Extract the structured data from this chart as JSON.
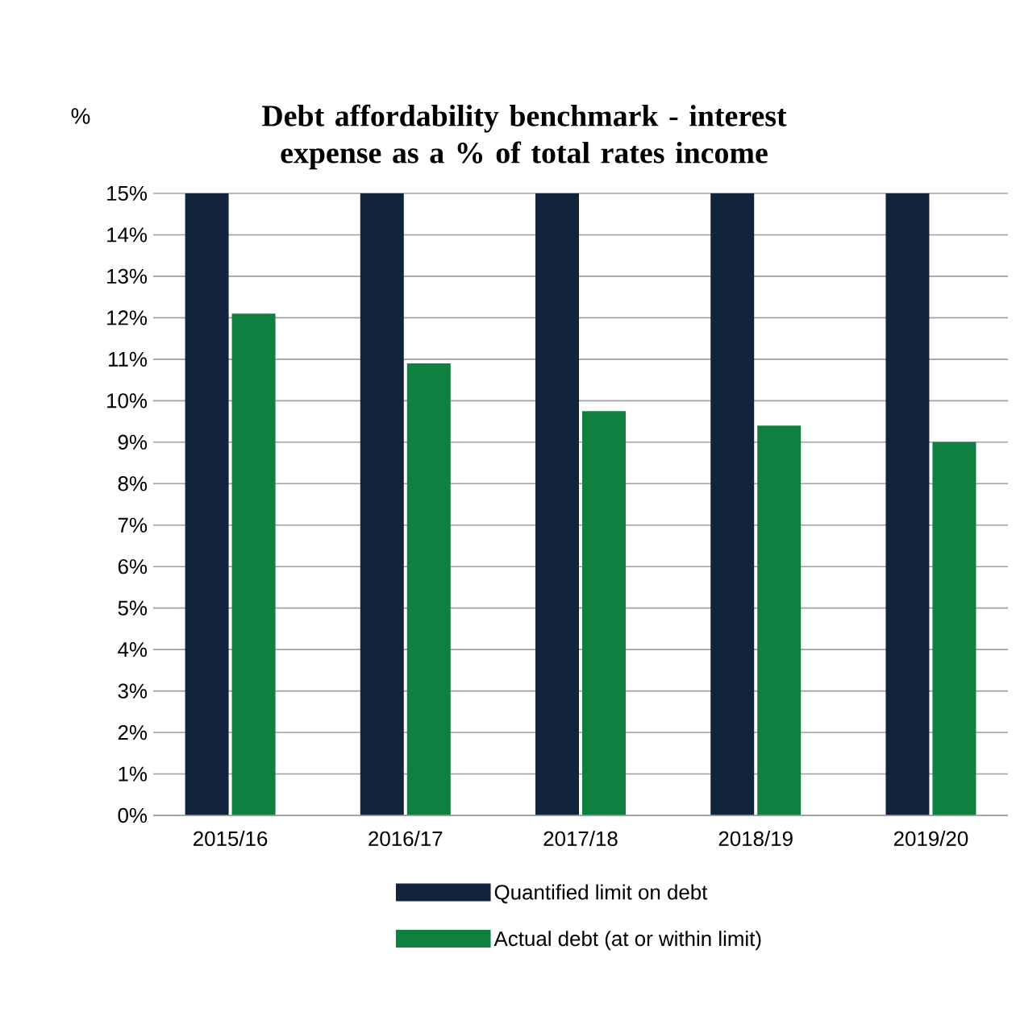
{
  "chart_data": {
    "type": "bar",
    "title": "Debt affordability benchmark - interest expense as a % of total rates income",
    "ylabel": "%",
    "categories": [
      "2015/16",
      "2016/17",
      "2017/18",
      "2018/19",
      "2019/20"
    ],
    "series": [
      {
        "name": "Quantified limit on debt",
        "color": "#12243c",
        "values": [
          15,
          15,
          15,
          15,
          15
        ]
      },
      {
        "name": "Actual debt (at or within limit)",
        "color": "#0e8040",
        "values": [
          12.1,
          10.9,
          9.75,
          9.4,
          9.0
        ]
      }
    ],
    "ylim": [
      0,
      15
    ],
    "yticks": [
      {
        "value": 0,
        "label": "0%"
      },
      {
        "value": 1,
        "label": "1%"
      },
      {
        "value": 2,
        "label": "2%"
      },
      {
        "value": 3,
        "label": "3%"
      },
      {
        "value": 4,
        "label": "4%"
      },
      {
        "value": 5,
        "label": "5%"
      },
      {
        "value": 6,
        "label": "6%"
      },
      {
        "value": 7,
        "label": "7%"
      },
      {
        "value": 8,
        "label": "8%"
      },
      {
        "value": 9,
        "label": "9%"
      },
      {
        "value": 10,
        "label": "10%"
      },
      {
        "value": 11,
        "label": "11%"
      },
      {
        "value": 12,
        "label": "12%"
      },
      {
        "value": 13,
        "label": "13%"
      },
      {
        "value": 14,
        "label": "14%"
      },
      {
        "value": 15,
        "label": "15%"
      }
    ],
    "grid": "y",
    "legend": "bottom"
  }
}
